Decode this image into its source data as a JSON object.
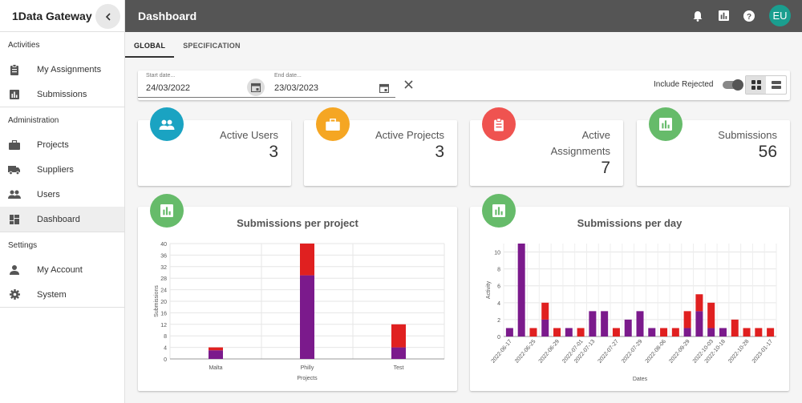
{
  "sidebar": {
    "brand": "1Data Gateway",
    "sections": [
      {
        "label": "Activities",
        "items": [
          {
            "label": "My Assignments",
            "icon": "clipboard-icon"
          },
          {
            "label": "Submissions",
            "icon": "bar-chart-icon"
          }
        ]
      },
      {
        "label": "Administration",
        "items": [
          {
            "label": "Projects",
            "icon": "briefcase-icon"
          },
          {
            "label": "Suppliers",
            "icon": "truck-icon"
          },
          {
            "label": "Users",
            "icon": "people-icon"
          },
          {
            "label": "Dashboard",
            "icon": "dashboard-icon",
            "active": true
          }
        ]
      },
      {
        "label": "Settings",
        "items": [
          {
            "label": "My Account",
            "icon": "person-icon"
          },
          {
            "label": "System",
            "icon": "gear-icon"
          }
        ]
      }
    ]
  },
  "topbar": {
    "title": "Dashboard",
    "avatar": "EU"
  },
  "tabs": [
    "GLOBAL",
    "SPECIFICATION"
  ],
  "filter": {
    "start_label": "Start date...",
    "start_value": "24/03/2022",
    "end_label": "End date...",
    "end_value": "23/03/2023",
    "include_rejected": "Include Rejected"
  },
  "stats": {
    "users": {
      "title": "Active Users",
      "value": "3"
    },
    "projects": {
      "title": "Active Projects",
      "value": "3"
    },
    "assignments": {
      "title_line1": "Active",
      "title_line2": "Assignments",
      "value": "7"
    },
    "submissions": {
      "title": "Submissions",
      "value": "56"
    }
  },
  "colors": {
    "teal": "#1aa3c2",
    "orange": "#f5a623",
    "red": "#ef5350",
    "green": "#66bb6a",
    "purple": "#7b1a8c",
    "bar_red": "#e02020"
  },
  "chart_data": [
    {
      "type": "bar",
      "title": "Submissions per project",
      "xlabel": "Projects",
      "ylabel": "Submissions",
      "categories": [
        "Malta",
        "Philly",
        "Test"
      ],
      "ylim": [
        0,
        40
      ],
      "yticks": [
        0,
        4,
        8,
        12,
        16,
        20,
        24,
        28,
        32,
        36,
        40
      ],
      "series": [
        {
          "values": [
            3,
            29,
            4
          ]
        },
        {
          "values": [
            1,
            11,
            8
          ]
        }
      ]
    },
    {
      "type": "bar",
      "title": "Submissions per day",
      "xlabel": "Dates",
      "ylabel": "Activity",
      "ylim": [
        0,
        11
      ],
      "yticks": [
        0,
        2,
        4,
        6,
        8,
        10
      ],
      "ticklabels": [
        "2022-06-17",
        "2022-06-25",
        "2022-06-29",
        "2022-07-01",
        "2022-07-13",
        "2022-07-27",
        "2022-07-29",
        "2022-08-06",
        "2022-09-29",
        "2022-10-03",
        "2022-10-18",
        "2022-10-28",
        "2023-01-17"
      ],
      "series": [
        {
          "values": [
            1,
            11,
            0,
            2,
            0,
            1,
            0,
            3,
            3,
            0,
            2,
            3,
            1,
            0,
            0,
            1,
            3,
            1,
            1,
            0,
            0,
            0,
            0
          ]
        },
        {
          "values": [
            0,
            0,
            1,
            2,
            1,
            0,
            1,
            0,
            0,
            1,
            0,
            0,
            0,
            1,
            1,
            2,
            2,
            3,
            0,
            2,
            1,
            1,
            1
          ]
        }
      ]
    }
  ]
}
